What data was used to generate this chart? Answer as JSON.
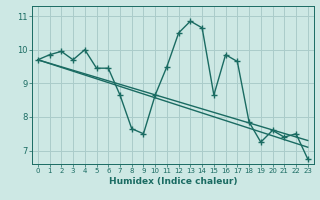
{
  "xlabel": "Humidex (Indice chaleur)",
  "ylabel": "",
  "background_color": "#cde8e4",
  "grid_color": "#aaccca",
  "line_color": "#1a6b62",
  "xlim": [
    -0.5,
    23.5
  ],
  "ylim": [
    6.6,
    11.3
  ],
  "yticks": [
    7,
    8,
    9,
    10,
    11
  ],
  "xticks": [
    0,
    1,
    2,
    3,
    4,
    5,
    6,
    7,
    8,
    9,
    10,
    11,
    12,
    13,
    14,
    15,
    16,
    17,
    18,
    19,
    20,
    21,
    22,
    23
  ],
  "line1_x": [
    0,
    1,
    2,
    3,
    4,
    5,
    6,
    7,
    8,
    9,
    10,
    11,
    12,
    13,
    14,
    15,
    16,
    17,
    18,
    19,
    20,
    21,
    22,
    23
  ],
  "line1_y": [
    9.7,
    9.85,
    9.95,
    9.7,
    10.0,
    9.45,
    9.45,
    8.65,
    7.65,
    7.5,
    8.65,
    9.5,
    10.5,
    10.85,
    10.65,
    8.65,
    9.85,
    9.65,
    7.85,
    7.25,
    7.6,
    7.4,
    7.5,
    6.75
  ],
  "line2_x": [
    0,
    23
  ],
  "line2_y": [
    9.7,
    7.1
  ],
  "line3_x": [
    0,
    23
  ],
  "line3_y": [
    9.7,
    7.3
  ],
  "marker_size": 4,
  "linewidth": 1.0
}
